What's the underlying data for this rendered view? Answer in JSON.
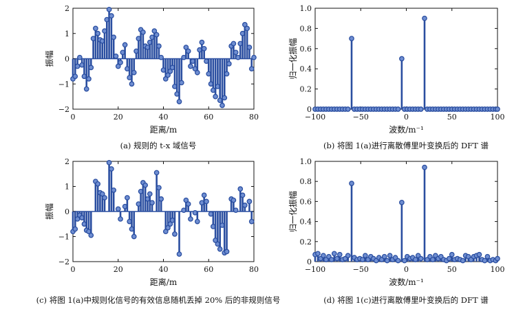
{
  "colors": {
    "stem": "#2a4ea0",
    "marker_fill": "#6f8ed1",
    "axis": "#111111"
  },
  "chart_data": [
    {
      "type": "stem",
      "caption": "(a) 规则的 t-x 域信号",
      "xlabel": "距离/m",
      "ylabel": "振幅",
      "xlim": [
        0,
        80
      ],
      "ylim": [
        -2,
        2
      ],
      "xticks": [
        "0",
        "20",
        "40",
        "60",
        "80"
      ],
      "yticks": [
        "−2",
        "−1",
        "0",
        "1",
        "2"
      ],
      "x": [
        0,
        1,
        2,
        3,
        4,
        5,
        6,
        7,
        8,
        9,
        10,
        11,
        12,
        13,
        14,
        15,
        16,
        17,
        18,
        19,
        20,
        21,
        22,
        23,
        24,
        25,
        26,
        27,
        28,
        29,
        30,
        31,
        32,
        33,
        34,
        35,
        36,
        37,
        38,
        39,
        40,
        41,
        42,
        43,
        44,
        45,
        46,
        47,
        48,
        49,
        50,
        51,
        52,
        53,
        54,
        55,
        56,
        57,
        58,
        59,
        60,
        61,
        62,
        63,
        64,
        65,
        66,
        67,
        68,
        69,
        70,
        71,
        72,
        73,
        74,
        75,
        76,
        77,
        78,
        79,
        80
      ],
      "y": [
        -0.8,
        -0.7,
        -0.3,
        0.05,
        -0.25,
        -0.7,
        -1.2,
        -0.8,
        -0.35,
        0.8,
        1.2,
        1.0,
        0.75,
        0.7,
        1.1,
        1.55,
        1.95,
        1.7,
        0.85,
        0.1,
        -0.3,
        -0.15,
        0.25,
        0.55,
        -0.4,
        -0.75,
        -1.0,
        -0.55,
        0.3,
        0.8,
        1.15,
        1.05,
        0.5,
        0.45,
        0.65,
        0.85,
        1.1,
        0.95,
        0.5,
        0.05,
        -0.45,
        -0.8,
        -0.65,
        -0.5,
        -0.35,
        -1.1,
        -1.4,
        -1.7,
        -0.95,
        0.05,
        0.45,
        0.3,
        -0.3,
        -0.1,
        -0.4,
        -0.55,
        0.35,
        0.65,
        0.4,
        -0.1,
        -0.6,
        -1.0,
        -1.25,
        -1.5,
        -1.1,
        -1.65,
        -1.85,
        -1.55,
        -0.6,
        -0.2,
        0.5,
        0.6,
        0.25,
        0.05,
        0.6,
        1.0,
        1.35,
        1.2,
        0.45,
        -0.4,
        0.05
      ]
    },
    {
      "type": "stem",
      "caption": "(b) 将图 1(a)进行离散傅里叶变换后的 DFT 谱",
      "xlabel": "波数/m⁻¹",
      "ylabel": "归一化振幅",
      "xlim": [
        -100,
        100
      ],
      "ylim": [
        0,
        1.0
      ],
      "xticks": [
        "−100",
        "−50",
        "0",
        "50",
        "100"
      ],
      "yticks": [
        "0",
        "0.2",
        "0.4",
        "0.6",
        "0.8",
        "1.0"
      ],
      "x": [
        -100,
        -97,
        -94,
        -91,
        -88,
        -85,
        -82,
        -79,
        -76,
        -73,
        -70,
        -67,
        -64,
        -60,
        -57,
        -54,
        -51,
        -48,
        -45,
        -42,
        -39,
        -36,
        -33,
        -30,
        -27,
        -24,
        -21,
        -18,
        -15,
        -12,
        -9,
        -5,
        -2,
        1,
        4,
        7,
        10,
        13,
        16,
        20,
        23,
        26,
        29,
        32,
        35,
        38,
        41,
        44,
        47,
        50,
        53,
        56,
        59,
        62,
        65,
        68,
        71,
        74,
        77,
        80,
        83,
        86,
        89,
        92,
        95,
        98,
        100
      ],
      "y": [
        0,
        0,
        0,
        0,
        0,
        0,
        0,
        0,
        0,
        0,
        0,
        0,
        0,
        0.7,
        0,
        0,
        0,
        0,
        0,
        0,
        0,
        0,
        0,
        0,
        0,
        0,
        0,
        0,
        0,
        0,
        0,
        0.5,
        0,
        0,
        0,
        0,
        0,
        0,
        0,
        0.9,
        0,
        0,
        0,
        0,
        0,
        0,
        0,
        0,
        0,
        0,
        0,
        0,
        0,
        0,
        0,
        0,
        0,
        0,
        0,
        0,
        0,
        0,
        0,
        0,
        0,
        0,
        0
      ]
    },
    {
      "type": "stem",
      "caption": "(c) 将图 1(a)中规则化信号的有效信息随机丢掉 20% 后的非规则信号",
      "xlabel": "距离/m",
      "ylabel": "振幅",
      "xlim": [
        0,
        80
      ],
      "ylim": [
        -2,
        2
      ],
      "xticks": [
        "0",
        "20",
        "40",
        "60",
        "80"
      ],
      "yticks": [
        "−2",
        "−1",
        "0",
        "1",
        "2"
      ],
      "x": [
        0,
        1,
        2,
        3,
        4,
        5,
        6,
        7,
        8,
        10,
        11,
        12,
        13,
        14,
        16,
        17,
        18,
        20,
        21,
        23,
        24,
        25,
        26,
        27,
        29,
        30,
        31,
        32,
        33,
        34,
        35,
        37,
        38,
        39,
        41,
        42,
        43,
        44,
        45,
        47,
        49,
        50,
        51,
        52,
        54,
        55,
        57,
        58,
        59,
        61,
        62,
        63,
        64,
        65,
        66,
        67,
        68,
        70,
        71,
        72,
        74,
        75,
        76,
        78,
        79
      ],
      "y": [
        -0.8,
        -0.7,
        -0.3,
        -0.15,
        -0.25,
        -0.5,
        -0.75,
        -0.8,
        -0.95,
        1.2,
        1.1,
        0.75,
        0.7,
        0.55,
        1.95,
        1.7,
        0.85,
        0.1,
        -0.3,
        0.2,
        0.55,
        -0.4,
        -0.7,
        -1.0,
        0.3,
        0.8,
        1.15,
        1.05,
        0.5,
        0.7,
        0.35,
        1.55,
        0.95,
        0.5,
        -0.8,
        -0.65,
        -0.5,
        -0.35,
        -0.9,
        -1.7,
        0.05,
        0.45,
        0.3,
        -0.3,
        -0.05,
        -0.4,
        0.35,
        0.65,
        0.4,
        -0.1,
        -0.6,
        -1.15,
        -1.3,
        -1.5,
        -0.55,
        -1.65,
        -1.6,
        0.5,
        0.45,
        0.05,
        0.9,
        0.65,
        0.25,
        0.4,
        -0.4
      ]
    },
    {
      "type": "stem",
      "caption": "(d) 将图 1(c)进行离散傅里叶变换后的 DFT 谱",
      "xlabel": "波数/m⁻¹",
      "ylabel": "归一化振幅",
      "xlim": [
        -100,
        100
      ],
      "ylim": [
        0,
        1.0
      ],
      "xticks": [
        "−100",
        "−50",
        "0",
        "50",
        "100"
      ],
      "yticks": [
        "0",
        "0.2",
        "0.4",
        "0.6",
        "0.8",
        "1.0"
      ],
      "x": [
        -100,
        -97,
        -94,
        -91,
        -88,
        -85,
        -82,
        -79,
        -76,
        -73,
        -70,
        -67,
        -64,
        -60,
        -57,
        -54,
        -51,
        -48,
        -45,
        -42,
        -39,
        -36,
        -33,
        -30,
        -27,
        -24,
        -21,
        -18,
        -15,
        -12,
        -9,
        -5,
        -2,
        1,
        4,
        7,
        10,
        13,
        16,
        20,
        23,
        26,
        29,
        32,
        35,
        38,
        41,
        44,
        47,
        50,
        53,
        56,
        59,
        62,
        65,
        68,
        71,
        74,
        77,
        80,
        83,
        86,
        89,
        92,
        95,
        98,
        100
      ],
      "y": [
        0.07,
        0.08,
        0.03,
        0.06,
        0.02,
        0.05,
        0.02,
        0.08,
        0.03,
        0.07,
        0.02,
        0.03,
        0.06,
        0.78,
        0.04,
        0.02,
        0.03,
        0.02,
        0.06,
        0.02,
        0.05,
        0.03,
        0.01,
        0.04,
        0.02,
        0.05,
        0.01,
        0.06,
        0.02,
        0.04,
        0.01,
        0.59,
        0.01,
        0.05,
        0.03,
        0.04,
        0.02,
        0.06,
        0.03,
        0.94,
        0.02,
        0.05,
        0.02,
        0.06,
        0.03,
        0.05,
        0.02,
        0.01,
        0.03,
        0.07,
        0.02,
        0.03,
        0.02,
        0.01,
        0.06,
        0.05,
        0.02,
        0.05,
        0.06,
        0.07,
        0.02,
        0.01,
        0.05,
        0.01,
        0.02,
        0.01,
        0.03
      ]
    }
  ]
}
